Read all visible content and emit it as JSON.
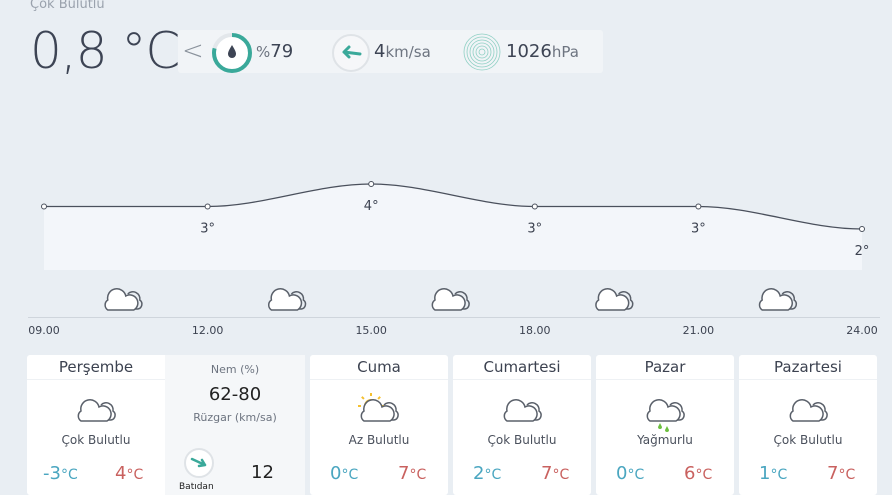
{
  "current": {
    "condition": "Çok Bulutlu",
    "temperature": "0,8 °C",
    "humidity": "79",
    "humidity_prefix": "%",
    "wind": "4",
    "wind_unit": "km/sa",
    "pressure": "1026",
    "pressure_unit": "hPa",
    "humidity_fraction": 0.79
  },
  "colors": {
    "accent": "#3aa99a",
    "cold": "#4aa6c0",
    "warm": "#c9615f",
    "rain": "#6cbf3f"
  },
  "hourly": {
    "hours": [
      "09.00",
      "12.00",
      "15.00",
      "18.00",
      "21.00",
      "24.00"
    ],
    "temps": [
      3,
      3,
      4,
      3,
      3,
      2
    ],
    "labels": [
      "",
      "3°",
      "4°",
      "3°",
      "3°",
      "2°"
    ],
    "icons": [
      "cloudy-icon",
      "cloudy-icon",
      "cloudy-icon",
      "cloudy-icon",
      "cloudy-icon"
    ]
  },
  "today": {
    "day": "Perşembe",
    "desc": "Çok Bulutlu",
    "icon": "cloudy-icon",
    "low": "-3",
    "high": "4",
    "unit": "°C",
    "humidity_label": "Nem (%)",
    "humidity": "62-80",
    "wind_label": "Rüzgar (km/sa)",
    "wind": "12",
    "wind_dir": "Batıdan"
  },
  "days": [
    {
      "day": "Cuma",
      "desc": "Az Bulutlu",
      "icon": "partly-sunny-icon",
      "low": "0",
      "high": "7",
      "unit": "°C"
    },
    {
      "day": "Cumartesi",
      "desc": "Çok Bulutlu",
      "icon": "cloudy-icon",
      "low": "2",
      "high": "7",
      "unit": "°C"
    },
    {
      "day": "Pazar",
      "desc": "Yağmurlu",
      "icon": "rain-icon",
      "low": "0",
      "high": "6",
      "unit": "°C"
    },
    {
      "day": "Pazartesi",
      "desc": "Çok Bulutlu",
      "icon": "cloudy-icon",
      "low": "1",
      "high": "7",
      "unit": "°C"
    }
  ]
}
